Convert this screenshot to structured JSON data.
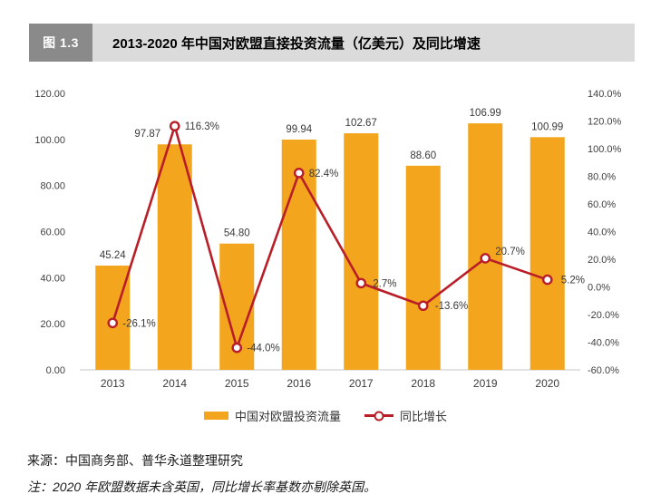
{
  "figure": {
    "tag": "图 1.3",
    "title": "2013-2020 年中国对欧盟直接投资流量（亿美元）及同比增速"
  },
  "chart_data": {
    "type": "bar",
    "subtype": "bar-line-combo-dual-axis",
    "title": "2013-2020 年中国对欧盟直接投资流量（亿美元）及同比增速",
    "categories": [
      "2013",
      "2014",
      "2015",
      "2016",
      "2017",
      "2018",
      "2019",
      "2020"
    ],
    "series": [
      {
        "name": "中国对欧盟投资流量",
        "type": "bar",
        "axis": "left",
        "values": [
          45.24,
          97.87,
          54.8,
          99.94,
          102.67,
          88.6,
          106.99,
          100.99
        ],
        "labels": [
          "45.24",
          "97.87",
          "54.80",
          "99.94",
          "102.67",
          "88.60",
          "106.99",
          "100.99"
        ],
        "label_dx": [
          0,
          -30,
          0,
          0,
          0,
          0,
          0,
          0
        ]
      },
      {
        "name": "同比增长",
        "type": "line",
        "axis": "right",
        "values": [
          -26.1,
          116.3,
          -44.0,
          82.4,
          2.7,
          -13.6,
          20.7,
          5.2
        ],
        "labels": [
          "-26.1%",
          "116.3%",
          "-44.0%",
          "82.4%",
          "2.7%",
          "-13.6%",
          "20.7%",
          "5.2%"
        ],
        "label_dx": [
          11,
          11,
          11,
          11,
          13,
          13,
          11,
          15
        ],
        "label_dy": [
          4,
          4,
          4,
          4,
          4,
          4,
          -4,
          4
        ]
      }
    ],
    "left_axis": {
      "min": 0,
      "max": 120,
      "step": 20,
      "ticks": [
        "120.00",
        "100.00",
        "80.00",
        "60.00",
        "40.00",
        "20.00",
        "0.00"
      ]
    },
    "right_axis": {
      "min": -60,
      "max": 140,
      "step": 20,
      "ticks": [
        "140.0%",
        "120.0%",
        "100.0%",
        "80.0%",
        "60.0%",
        "40.0%",
        "20.0%",
        "0.0%",
        "-20.0%",
        "-40.0%",
        "-60.0%"
      ]
    },
    "legend_position": "bottom",
    "grid": "off"
  },
  "colors": {
    "bar": "#f2a51d",
    "line": "#b91e28",
    "tag_bg": "#8a8a8a",
    "titlebar_bg": "#dbdbdb",
    "baseline": "#c8c8c8"
  },
  "notes": {
    "source": "来源：中国商务部、普华永道整理研究",
    "remark": "注：2020 年欧盟数据未含英国，同比增长率基数亦剔除英国。"
  }
}
